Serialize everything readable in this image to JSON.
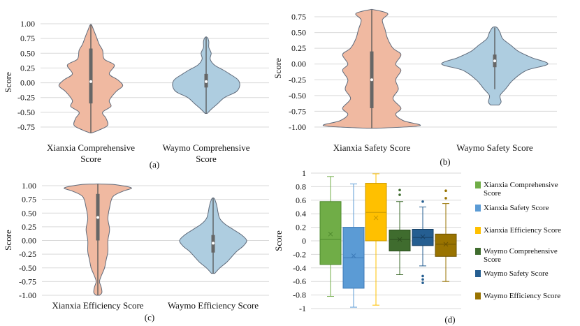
{
  "chart_data": [
    {
      "panel": "(a)",
      "type": "violin",
      "ylabel": "Score",
      "ylim": [
        -0.9,
        1.05
      ],
      "yticks": [
        "1.00",
        "0.75",
        "0.50",
        "0.25",
        "0.00",
        "-0.25",
        "-0.50",
        "-0.75"
      ],
      "categories": [
        "Xianxia Comprehensive Score",
        "Waymo Comprehensive Score"
      ],
      "category_lines": [
        [
          "Xianxia Comprehensive",
          "Score"
        ],
        [
          "Waymo Comprehensive",
          "Score"
        ]
      ],
      "series": [
        {
          "name": "Xianxia Comprehensive Score",
          "color": "#f0b9a1",
          "quartiles": [
            -0.35,
            0.02,
            0.58
          ],
          "whisker": [
            -0.85,
            0.98
          ],
          "profile": [
            [
              -0.85,
              0.02
            ],
            [
              -0.8,
              0.25
            ],
            [
              -0.72,
              0.5
            ],
            [
              -0.6,
              0.45
            ],
            [
              -0.5,
              0.35
            ],
            [
              -0.4,
              0.6
            ],
            [
              -0.3,
              0.55
            ],
            [
              -0.15,
              0.75
            ],
            [
              -0.05,
              0.95
            ],
            [
              0.05,
              0.8
            ],
            [
              0.15,
              0.55
            ],
            [
              0.3,
              0.7
            ],
            [
              0.4,
              0.4
            ],
            [
              0.55,
              0.35
            ],
            [
              0.65,
              0.25
            ],
            [
              0.8,
              0.15
            ],
            [
              0.9,
              0.08
            ],
            [
              0.98,
              0.02
            ]
          ]
        },
        {
          "name": "Waymo Comprehensive Score",
          "color": "#aecde0",
          "quartiles": [
            -0.08,
            0.02,
            0.15
          ],
          "whisker": [
            -0.52,
            0.77
          ],
          "profile": [
            [
              -0.52,
              0.03
            ],
            [
              -0.45,
              0.15
            ],
            [
              -0.35,
              0.35
            ],
            [
              -0.25,
              0.55
            ],
            [
              -0.15,
              0.9
            ],
            [
              -0.05,
              1.0
            ],
            [
              0.05,
              0.95
            ],
            [
              0.15,
              0.7
            ],
            [
              0.22,
              0.5
            ],
            [
              0.3,
              0.25
            ],
            [
              0.4,
              0.12
            ],
            [
              0.5,
              0.15
            ],
            [
              0.6,
              0.08
            ],
            [
              0.7,
              0.08
            ],
            [
              0.77,
              0.03
            ]
          ]
        }
      ]
    },
    {
      "panel": "(b)",
      "type": "violin",
      "ylabel": "Score",
      "ylim": [
        -1.05,
        0.88
      ],
      "yticks": [
        "0.75",
        "0.50",
        "0.25",
        "0.00",
        "-0.25",
        "-0.50",
        "-0.75",
        "-1.00"
      ],
      "categories": [
        "Xianxia Safety Score",
        "Waymo Safety Score"
      ],
      "category_lines": [
        [
          "Xianxia Safety Score"
        ],
        [
          "Waymo Safety Score"
        ]
      ],
      "series": [
        {
          "name": "Xianxia Safety Score",
          "color": "#f0b9a1",
          "quartiles": [
            -0.7,
            -0.25,
            0.2
          ],
          "whisker": [
            -1.02,
            0.86
          ],
          "profile": [
            [
              -1.02,
              0.05
            ],
            [
              -0.98,
              0.9
            ],
            [
              -0.9,
              0.6
            ],
            [
              -0.8,
              0.45
            ],
            [
              -0.7,
              0.55
            ],
            [
              -0.55,
              0.4
            ],
            [
              -0.4,
              0.5
            ],
            [
              -0.25,
              0.45
            ],
            [
              -0.1,
              0.55
            ],
            [
              0.0,
              0.45
            ],
            [
              0.15,
              0.55
            ],
            [
              0.25,
              0.4
            ],
            [
              0.4,
              0.3
            ],
            [
              0.55,
              0.25
            ],
            [
              0.7,
              0.2
            ],
            [
              0.8,
              0.3
            ],
            [
              0.86,
              0.05
            ]
          ]
        },
        {
          "name": "Waymo Safety Score",
          "color": "#aecde0",
          "quartiles": [
            -0.05,
            0.05,
            0.15
          ],
          "whisker": [
            -0.4,
            0.58
          ],
          "profile": [
            [
              -0.65,
              0.08
            ],
            [
              -0.6,
              0.12
            ],
            [
              -0.5,
              0.1
            ],
            [
              -0.4,
              0.2
            ],
            [
              -0.25,
              0.35
            ],
            [
              -0.1,
              0.6
            ],
            [
              0.0,
              1.0
            ],
            [
              0.1,
              0.7
            ],
            [
              0.2,
              0.45
            ],
            [
              0.3,
              0.3
            ],
            [
              0.4,
              0.15
            ],
            [
              0.5,
              0.1
            ],
            [
              0.58,
              0.04
            ]
          ]
        }
      ]
    },
    {
      "panel": "(c)",
      "type": "violin",
      "ylabel": "Score",
      "ylim": [
        -1.02,
        1.06
      ],
      "yticks": [
        "1.00",
        "0.75",
        "0.50",
        "0.25",
        "0.00",
        "-0.25",
        "-0.50",
        "-0.75",
        "-1.00"
      ],
      "categories": [
        "Xianxia Efficiency Score",
        "Waymo Efficiency Score"
      ],
      "category_lines": [
        [
          "Xianxia Efficiency Score"
        ],
        [
          "Waymo Efficiency Score"
        ]
      ],
      "series": [
        {
          "name": "Xianxia Efficiency Score",
          "color": "#f0b9a1",
          "quartiles": [
            0.0,
            0.42,
            0.85
          ],
          "whisker": [
            -1.0,
            1.03
          ],
          "profile": [
            [
              -1.0,
              0.05
            ],
            [
              -0.95,
              0.12
            ],
            [
              -0.85,
              0.1
            ],
            [
              -0.75,
              0.05
            ],
            [
              -0.65,
              0.1
            ],
            [
              -0.5,
              0.2
            ],
            [
              -0.35,
              0.25
            ],
            [
              -0.2,
              0.3
            ],
            [
              0.0,
              0.3
            ],
            [
              0.2,
              0.35
            ],
            [
              0.4,
              0.3
            ],
            [
              0.6,
              0.35
            ],
            [
              0.8,
              0.45
            ],
            [
              0.9,
              0.75
            ],
            [
              0.96,
              1.0
            ],
            [
              1.02,
              0.5
            ],
            [
              1.03,
              0.05
            ]
          ]
        },
        {
          "name": "Waymo Efficiency Score",
          "color": "#aecde0",
          "quartiles": [
            -0.22,
            -0.05,
            0.1
          ],
          "whisker": [
            -0.6,
            0.77
          ],
          "profile": [
            [
              -0.6,
              0.05
            ],
            [
              -0.5,
              0.2
            ],
            [
              -0.4,
              0.4
            ],
            [
              -0.3,
              0.55
            ],
            [
              -0.2,
              0.7
            ],
            [
              -0.1,
              0.9
            ],
            [
              0.0,
              1.0
            ],
            [
              0.1,
              0.85
            ],
            [
              0.2,
              0.6
            ],
            [
              0.3,
              0.35
            ],
            [
              0.4,
              0.2
            ],
            [
              0.5,
              0.15
            ],
            [
              0.6,
              0.12
            ],
            [
              0.7,
              0.08
            ],
            [
              0.77,
              0.03
            ]
          ]
        }
      ]
    },
    {
      "panel": "(d)",
      "type": "box",
      "ylabel": "Score",
      "ylim": [
        -1,
        1
      ],
      "yticks": [
        "1",
        "0.8",
        "0.6",
        "0.4",
        "0.2",
        "0",
        "-0.2",
        "-0.4",
        "-0.6",
        "-0.8",
        "-1"
      ],
      "series": [
        {
          "name": "Xianxia Comprehensive Score",
          "legend_lines": [
            "Xianxia Comprehensive",
            "Score"
          ],
          "color": "#70ad47",
          "edge": "#4e8a2e",
          "q1": -0.35,
          "median": 0.02,
          "q3": 0.58,
          "mean": 0.1,
          "whisker": [
            -0.82,
            0.95
          ],
          "outliers": []
        },
        {
          "name": "Xianxia Safety Score",
          "legend_lines": [
            "Xianxia Safety Score"
          ],
          "color": "#5b9bd5",
          "edge": "#3c7ab8",
          "q1": -0.7,
          "median": -0.25,
          "q3": 0.2,
          "mean": -0.22,
          "whisker": [
            -0.98,
            0.84
          ],
          "outliers": []
        },
        {
          "name": "Xianxia Efficiency Score",
          "legend_lines": [
            "Xianxia Efficiency Score"
          ],
          "color": "#ffc000",
          "edge": "#cc9a00",
          "q1": 0.0,
          "median": 0.42,
          "q3": 0.85,
          "mean": 0.34,
          "whisker": [
            -0.95,
            0.99
          ],
          "outliers": []
        },
        {
          "name": "Waymo Comprehensive Score",
          "legend_lines": [
            "Waymo Comprehensive",
            "Score"
          ],
          "color": "#3f6c2e",
          "edge": "#2b4d1f",
          "q1": -0.15,
          "median": 0.02,
          "q3": 0.16,
          "mean": 0.02,
          "whisker": [
            -0.5,
            0.58
          ],
          "outliers": [
            0.68,
            0.75
          ]
        },
        {
          "name": "Waymo Safety Score",
          "legend_lines": [
            "Waymo Safety Score"
          ],
          "color": "#255e91",
          "edge": "#173f63",
          "q1": -0.07,
          "median": 0.05,
          "q3": 0.17,
          "mean": 0.06,
          "whisker": [
            -0.37,
            0.5
          ],
          "outliers": [
            0.58,
            -0.52,
            -0.57,
            -0.62
          ]
        },
        {
          "name": "Waymo Efficiency Score",
          "legend_lines": [
            "Waymo Efficiency Score"
          ],
          "color": "#997300",
          "edge": "#6e5300",
          "q1": -0.23,
          "median": -0.05,
          "q3": 0.1,
          "mean": -0.05,
          "whisker": [
            -0.6,
            0.55
          ],
          "outliers": [
            0.63,
            0.74
          ]
        }
      ]
    }
  ]
}
